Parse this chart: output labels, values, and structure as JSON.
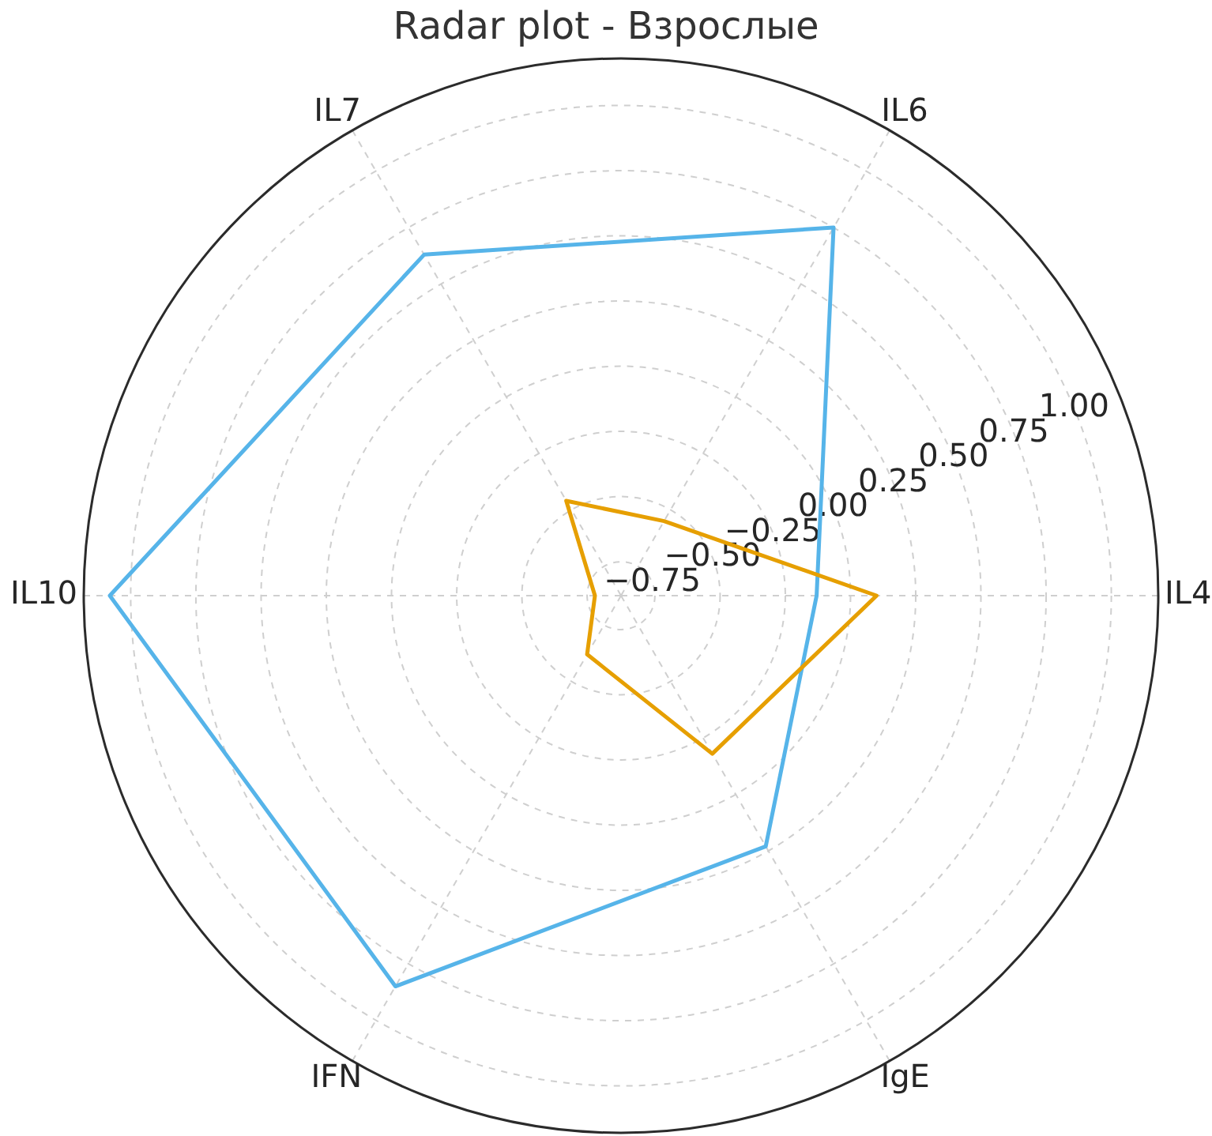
{
  "chart_data": {
    "type": "radar",
    "title": "Radar plot - Взрослые",
    "categories": [
      "IL6",
      "IL4",
      "IgE",
      "IFN",
      "IL10",
      "IL7"
    ],
    "series": [
      {
        "color": "#56b4e9",
        "values": [
          0.75,
          -0.13,
          0.23,
          0.85,
          1.08,
          0.63
        ]
      },
      {
        "color": "#e69f00",
        "values": [
          -0.55,
          0.1,
          -0.18,
          -0.62,
          -0.78,
          -0.46
        ]
      }
    ],
    "ylim": [
      -0.88,
      1.18
    ],
    "yticks": [
      {
        "value": -0.75,
        "label": "−0.75"
      },
      {
        "value": -0.5,
        "label": "−0.50"
      },
      {
        "value": -0.25,
        "label": "−0.25"
      },
      {
        "value": 0,
        "label": "0.00"
      },
      0.25,
      {
        "value": 0.5,
        "label": "0.50"
      },
      0.75,
      {
        "value": 1,
        "label": "1.00"
      }
    ],
    "grid": true,
    "marker": "none"
  }
}
